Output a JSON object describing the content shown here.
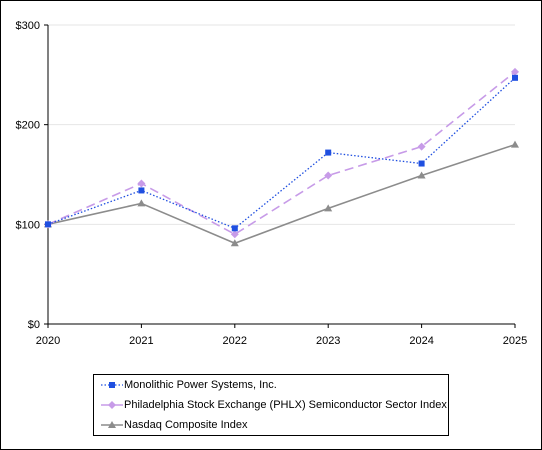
{
  "chart_data": {
    "type": "line",
    "categories": [
      "2020",
      "2021",
      "2022",
      "2023",
      "2024",
      "2025"
    ],
    "ylim": [
      0,
      300
    ],
    "yticks": [
      "$0",
      "$100",
      "$200",
      "$300"
    ],
    "ytick_values": [
      0,
      100,
      200,
      300
    ],
    "grid": "horizontal",
    "legend_placement": "bottom",
    "series": [
      {
        "name": "Monolithic Power Systems, Inc.",
        "values": [
          100,
          134,
          96,
          172,
          161,
          247
        ],
        "color": "#1f4fe0",
        "marker": "square",
        "dash": "dotted"
      },
      {
        "name": "Philadelphia Stock Exchange (PHLX) Semiconductor Sector Index",
        "values": [
          100,
          141,
          90,
          149,
          178,
          253
        ],
        "color": "#c79be8",
        "marker": "diamond",
        "dash": "dashed"
      },
      {
        "name": "Nasdaq Composite Index",
        "values": [
          100,
          121,
          81,
          116,
          149,
          180
        ],
        "color": "#8c8c8c",
        "marker": "triangle",
        "dash": "solid"
      }
    ]
  }
}
